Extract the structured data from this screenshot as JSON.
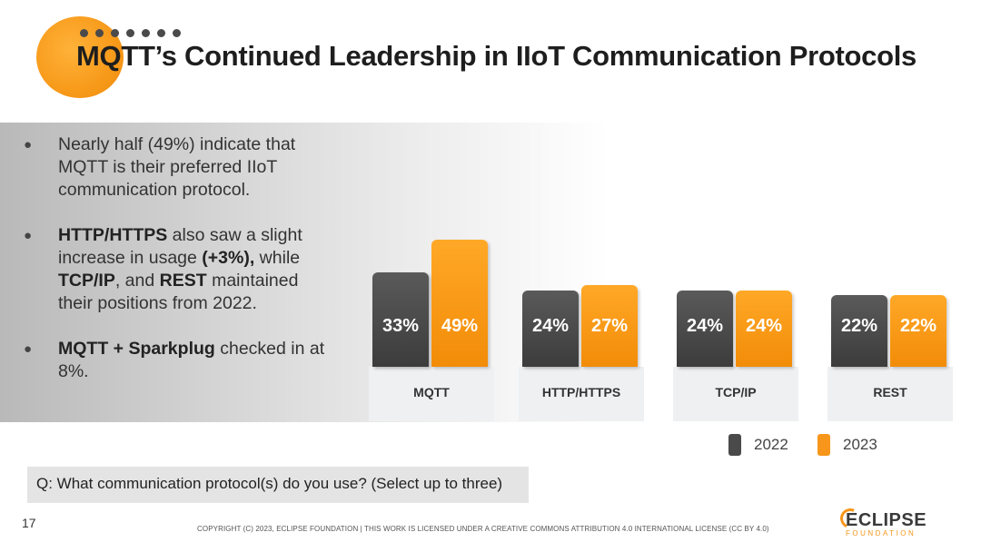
{
  "page": {
    "title": "MQTT’s Continued Leadership in IIoT Communication Protocols",
    "page_number": "17",
    "copyright": "COPYRIGHT (C) 2023, ECLIPSE FOUNDATION | THIS WORK IS LICENSED UNDER A CREATIVE COMMONS ATTRIBUTION 4.0 INTERNATIONAL LICENSE (CC BY 4.0)",
    "question": "Q: What communication protocol(s) do you use? (Select up to three)",
    "logo_text": "ECLIPSE",
    "logo_subtext": "FOUNDATION"
  },
  "bullets": [
    {
      "parts": [
        {
          "t": "Nearly half (49%) indicate that MQTT is their preferred IIoT communication protocol.",
          "b": false
        }
      ]
    },
    {
      "parts": [
        {
          "t": "HTTP/HTTPS",
          "b": true
        },
        {
          "t": " also saw a slight increase in usage ",
          "b": false
        },
        {
          "t": "(+3%),",
          "b": true
        },
        {
          "t": " while ",
          "b": false
        },
        {
          "t": "TCP/IP",
          "b": true
        },
        {
          "t": ", and ",
          "b": false
        },
        {
          "t": "REST",
          "b": true
        },
        {
          "t": " maintained their positions from 2022.",
          "b": false
        }
      ]
    },
    {
      "parts": [
        {
          "t": "MQTT + Sparkplug",
          "b": true
        },
        {
          "t": " checked in at 8%.",
          "b": false
        }
      ]
    }
  ],
  "colors": {
    "y2022": "#4a4a4a",
    "y2023": "#f7961a",
    "accent": "#f7961a"
  },
  "chart_data": {
    "type": "bar",
    "title": "",
    "categories": [
      "MQTT",
      "HTTP/HTTPS",
      "TCP/IP",
      "REST"
    ],
    "series": [
      {
        "name": "2022",
        "values": [
          33,
          24,
          24,
          22
        ],
        "labels": [
          "33%",
          "24%",
          "24%",
          "22%"
        ]
      },
      {
        "name": "2023",
        "values": [
          49,
          27,
          24,
          22
        ],
        "labels": [
          "49%",
          "27%",
          "24%",
          "22%"
        ]
      }
    ],
    "xlabel": "",
    "ylabel": "",
    "ylim": [
      0,
      50
    ],
    "legend": "bottom-right",
    "grid": false
  }
}
